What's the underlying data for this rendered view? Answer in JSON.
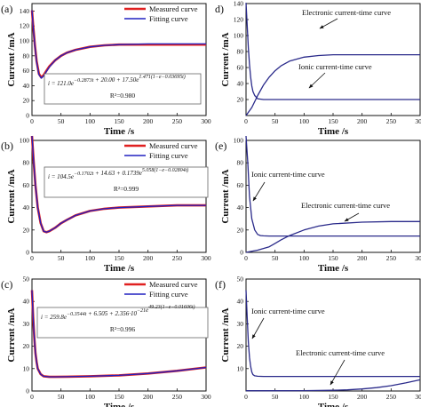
{
  "chart_data": [
    {
      "panel": "(a)",
      "type": "line",
      "xlabel": "Time /s",
      "ylabel": "Current /mA",
      "xlim": [
        0,
        300
      ],
      "ylim": [
        0,
        150
      ],
      "xticks": [
        0,
        50,
        100,
        150,
        200,
        250,
        300
      ],
      "yticks": [
        0,
        20,
        40,
        60,
        80,
        100,
        120,
        140
      ],
      "legend": "top-right",
      "series": [
        {
          "name": "Measured curve",
          "color": "#e02020",
          "x": [
            0,
            2,
            5,
            8,
            12,
            16,
            20,
            25,
            30,
            40,
            50,
            60,
            75,
            100,
            125,
            150,
            200,
            250,
            300
          ],
          "y": [
            141,
            121,
            94,
            73,
            56,
            51,
            54,
            60,
            66,
            74,
            80,
            84,
            88,
            92,
            94,
            95,
            95,
            95,
            95
          ]
        },
        {
          "name": "Fitting curve",
          "color": "#2020c0",
          "x": [
            0,
            2,
            5,
            8,
            12,
            16,
            20,
            25,
            30,
            40,
            50,
            60,
            75,
            100,
            125,
            150,
            200,
            250,
            300
          ],
          "y": [
            141,
            120,
            93,
            72,
            55,
            50,
            53,
            59,
            65,
            74,
            80,
            84,
            88,
            92,
            94,
            95,
            96,
            96,
            96
          ]
        }
      ],
      "annotation": {
        "equation": "i = 121.0e^{−0.2873t} + 20.00 + 17.50e^{1.471(1−e^{−0.03695t})}",
        "r2": "R²=0.980"
      }
    },
    {
      "panel": "(b)",
      "type": "line",
      "xlabel": "Time /s",
      "ylabel": "Current /mA",
      "xlim": [
        0,
        300
      ],
      "ylim": [
        0,
        100
      ],
      "xticks": [
        0,
        50,
        100,
        150,
        200,
        250,
        300
      ],
      "yticks": [
        0,
        20,
        40,
        60,
        80,
        100
      ],
      "legend": "top-right",
      "series": [
        {
          "name": "Measured curve",
          "color": "#e02020",
          "x": [
            0,
            3,
            6,
            10,
            15,
            20,
            25,
            30,
            40,
            50,
            60,
            75,
            100,
            125,
            150,
            200,
            250,
            300
          ],
          "y": [
            104,
            80,
            60,
            40,
            26,
            19,
            18,
            19,
            22,
            26,
            29,
            33,
            37,
            39,
            40,
            41,
            42,
            42
          ]
        },
        {
          "name": "Fitting curve",
          "color": "#2020c0",
          "x": [
            0,
            3,
            6,
            10,
            15,
            20,
            25,
            30,
            40,
            50,
            60,
            75,
            100,
            125,
            150,
            200,
            250,
            300
          ],
          "y": [
            104,
            80,
            60,
            40,
            26,
            19,
            18,
            19,
            22,
            26,
            29,
            33,
            37,
            39,
            40,
            41,
            42,
            42
          ]
        }
      ],
      "annotation": {
        "equation": "i = 104.5e^{−0.1702t} + 14.63 + 0.1739e^{5.058(1−e^{−0.02804t})}",
        "r2": "R²=0.999"
      }
    },
    {
      "panel": "(c)",
      "type": "line",
      "xlabel": "Time /s",
      "ylabel": "Current /mA",
      "xlim": [
        0,
        300
      ],
      "ylim": [
        0,
        50
      ],
      "xticks": [
        0,
        50,
        100,
        150,
        200,
        250,
        300
      ],
      "yticks": [
        0,
        10,
        20,
        30,
        40,
        50
      ],
      "legend": "top-right",
      "series": [
        {
          "name": "Measured curve",
          "color": "#e02020",
          "x": [
            0,
            2,
            4,
            6,
            8,
            10,
            15,
            20,
            30,
            40,
            60,
            100,
            150,
            200,
            250,
            300
          ],
          "y": [
            45,
            33,
            24,
            17,
            13,
            10,
            7.5,
            6.6,
            6.3,
            6.3,
            6.4,
            6.6,
            7.0,
            7.8,
            9.0,
            10.5
          ]
        },
        {
          "name": "Fitting curve",
          "color": "#2020c0",
          "x": [
            0,
            2,
            4,
            6,
            8,
            10,
            15,
            20,
            30,
            40,
            60,
            100,
            150,
            200,
            250,
            300
          ],
          "y": [
            45,
            33,
            24,
            17,
            13,
            10,
            7.5,
            6.6,
            6.3,
            6.3,
            6.4,
            6.6,
            7.0,
            7.8,
            9.0,
            10.5
          ]
        }
      ],
      "annotation": {
        "equation": "i = 259.8e^{−0.3544t} + 6.505 + 2.356·10^{−21}e^{49.23(1−e^{−0.01606t})}",
        "r2": "R²=0.996"
      }
    },
    {
      "panel": "d)",
      "type": "line",
      "xlabel": "Time /s",
      "ylabel": "Current /mA",
      "xlim": [
        0,
        300
      ],
      "ylim": [
        0,
        140
      ],
      "xticks": [
        0,
        50,
        100,
        150,
        200,
        250,
        300
      ],
      "yticks": [
        20,
        40,
        60,
        80,
        100,
        120,
        140
      ],
      "series": [
        {
          "name": "Electronic current-time curve",
          "color": "#2a2a8a",
          "x": [
            0,
            10,
            20,
            30,
            40,
            50,
            60,
            75,
            100,
            125,
            150,
            200,
            250,
            300
          ],
          "y": [
            0,
            10,
            25,
            38,
            48,
            56,
            62,
            68,
            73,
            75,
            76,
            76,
            76,
            76
          ]
        },
        {
          "name": "Ionic current-time curve",
          "color": "#2a2a8a",
          "x": [
            0,
            2,
            4,
            6,
            8,
            10,
            12,
            15,
            20,
            30,
            50,
            100,
            200,
            300
          ],
          "y": [
            141,
            113,
            85,
            64,
            48,
            37,
            30,
            25,
            21,
            20,
            20,
            20,
            20,
            20
          ]
        }
      ],
      "annotations": [
        "Electronic current-time curve",
        "Ionic current-time curve"
      ]
    },
    {
      "panel": "(e)",
      "type": "line",
      "xlabel": "Time /s",
      "ylabel": "Current /mA",
      "xlim": [
        0,
        300
      ],
      "ylim": [
        0,
        100
      ],
      "xticks": [
        0,
        50,
        100,
        150,
        200,
        250,
        300
      ],
      "yticks": [
        0,
        20,
        40,
        60,
        80,
        100
      ],
      "series": [
        {
          "name": "Ionic current-time curve",
          "color": "#2a2a8a",
          "x": [
            0,
            3,
            6,
            10,
            15,
            20,
            25,
            30,
            40,
            60,
            100,
            200,
            300
          ],
          "y": [
            104,
            80,
            50,
            30,
            20,
            16,
            15,
            14.8,
            14.6,
            14.6,
            14.6,
            14.6,
            14.6
          ]
        },
        {
          "name": "Electronic current-time curve",
          "color": "#2a2a8a",
          "x": [
            0,
            10,
            20,
            30,
            40,
            50,
            60,
            75,
            100,
            125,
            150,
            200,
            250,
            300
          ],
          "y": [
            0,
            1,
            2,
            3.5,
            5,
            8,
            11,
            15,
            20,
            23.5,
            25.5,
            27,
            27.5,
            27.5
          ]
        }
      ],
      "annotations": [
        "Ionic current-time curve",
        "Electronic current-time curve"
      ]
    },
    {
      "panel": "(f)",
      "type": "line",
      "xlabel": "Time /s",
      "ylabel": "Current /mA",
      "xlim": [
        0,
        300
      ],
      "ylim": [
        0,
        50
      ],
      "xticks": [
        0,
        50,
        100,
        150,
        200,
        250,
        300
      ],
      "yticks": [
        10,
        20,
        30,
        40,
        50
      ],
      "series": [
        {
          "name": "Ionic current-time curve",
          "color": "#2a2a8a",
          "x": [
            0,
            2,
            4,
            6,
            8,
            10,
            12,
            15,
            20,
            30,
            50,
            100,
            200,
            300
          ],
          "y": [
            45,
            33,
            22,
            15,
            11,
            8.5,
            7.3,
            6.8,
            6.6,
            6.5,
            6.5,
            6.5,
            6.5,
            6.5
          ]
        },
        {
          "name": "Electronic current-time curve",
          "color": "#2a2a8a",
          "x": [
            0,
            50,
            100,
            150,
            175,
            200,
            225,
            250,
            275,
            300
          ],
          "y": [
            0.1,
            0.1,
            0.15,
            0.3,
            0.5,
            0.9,
            1.5,
            2.4,
            3.6,
            5.0
          ]
        }
      ],
      "annotations": [
        "Ionic current-time curve",
        "Electronic current-time curve"
      ]
    }
  ]
}
